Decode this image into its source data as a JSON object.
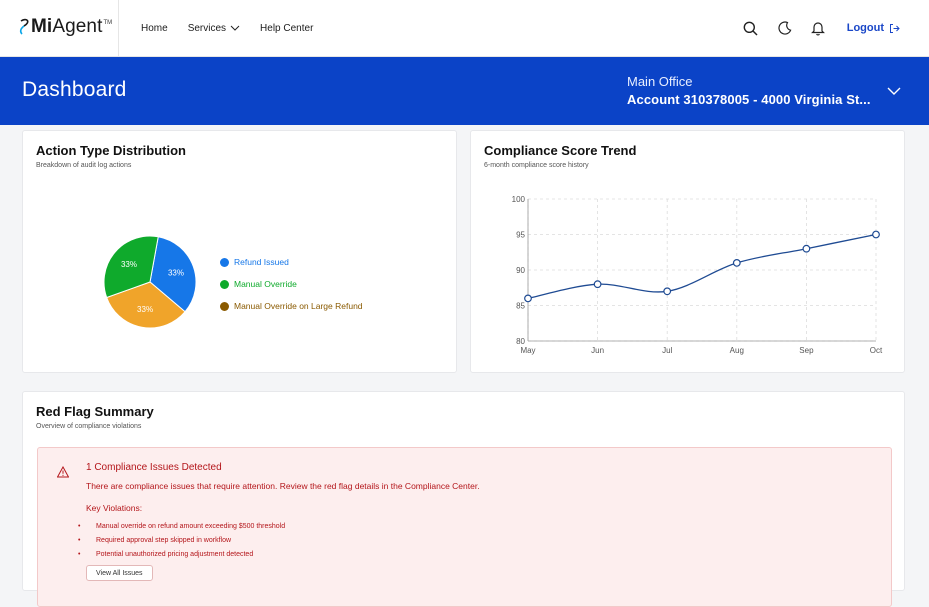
{
  "brand": {
    "logo_mi": "Mi",
    "logo_agent": "Agent",
    "logo_tm": "TM"
  },
  "nav": {
    "home": "Home",
    "services": "Services",
    "help": "Help Center"
  },
  "header_actions": {
    "logout": "Logout"
  },
  "banner": {
    "title": "Dashboard",
    "location": "Main Office",
    "account": "Account 310378005 - 4000 Virginia St..."
  },
  "action_card": {
    "title": "Action Type Distribution",
    "subtitle": "Breakdown of audit log actions"
  },
  "trend_card": {
    "title": "Compliance Score Trend",
    "subtitle": "6-month compliance score history"
  },
  "red_flag": {
    "title": "Red Flag Summary",
    "subtitle": "Overview of compliance violations",
    "alert_title": "1 Compliance Issues Detected",
    "alert_desc": "There are compliance issues that require attention. Review the red flag details in the Compliance Center.",
    "key_label": "Key Violations:",
    "violations": [
      "Manual override on refund amount exceeding $500 threshold",
      "Required approval step skipped in workflow",
      "Potential unauthorized pricing adjustment detected"
    ],
    "button": "View All Issues"
  },
  "colors": {
    "brand_blue": "#0b43c7",
    "refund": "#1677e8",
    "override": "#0faa2c",
    "override_large": "#f0a42a",
    "alert_red": "#b4161b"
  },
  "chart_data": [
    {
      "type": "pie",
      "categories": [
        "Refund Issued",
        "Manual Override",
        "Manual Override on Large Refund"
      ],
      "values": [
        33.33,
        33.33,
        33.33
      ],
      "labels": [
        "33%",
        "33%",
        "33%"
      ],
      "colors": [
        "#1677e8",
        "#0faa2c",
        "#f0a42a"
      ],
      "legend": "right"
    },
    {
      "type": "line",
      "x": [
        "May",
        "Jun",
        "Jul",
        "Aug",
        "Sep",
        "Oct"
      ],
      "y": [
        86,
        88,
        87,
        91,
        93,
        95
      ],
      "yticks": [
        80,
        85,
        90,
        95,
        100
      ],
      "ylim": [
        80,
        100
      ],
      "grid": true,
      "color": "#1f4b93"
    }
  ]
}
